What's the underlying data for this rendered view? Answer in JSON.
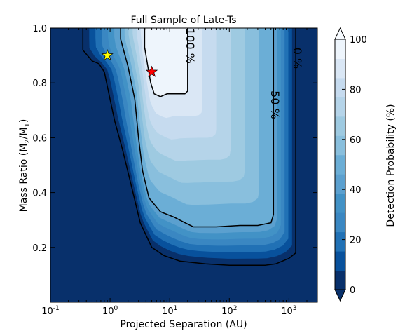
{
  "chart_data": {
    "type": "heatmap",
    "title": "Full Sample of Late-Ts",
    "xlabel": "Projected Separation (AU)",
    "ylabel_parts": {
      "main": "Mass Ratio (M",
      "sub2": "2",
      "mid": "/M",
      "sub1": "1",
      "end": ")"
    },
    "x_scale": "log",
    "xlim": [
      0.1,
      3000
    ],
    "ylim": [
      0.0,
      1.0
    ],
    "x_ticks": [
      {
        "value": 0.1,
        "base": "10",
        "exp": "-1"
      },
      {
        "value": 1,
        "base": "10",
        "exp": "0"
      },
      {
        "value": 10,
        "base": "10",
        "exp": "1"
      },
      {
        "value": 100,
        "base": "10",
        "exp": "2"
      },
      {
        "value": 1000,
        "base": "10",
        "exp": "3"
      }
    ],
    "y_ticks": [
      {
        "value": 0.2,
        "label": "0.2"
      },
      {
        "value": 0.4,
        "label": "0.4"
      },
      {
        "value": 0.6,
        "label": "0.6"
      },
      {
        "value": 0.8,
        "label": "0.8"
      },
      {
        "value": 1.0,
        "label": "1.0"
      }
    ],
    "colorbar": {
      "label": "Detection Probability (%)",
      "range": [
        0,
        100
      ],
      "ticks": [
        {
          "value": 0,
          "label": "0"
        },
        {
          "value": 20,
          "label": "20"
        },
        {
          "value": 40,
          "label": "40"
        },
        {
          "value": 60,
          "label": "60"
        },
        {
          "value": 80,
          "label": "80"
        },
        {
          "value": 100,
          "label": "100"
        }
      ],
      "levels": 13,
      "colors": [
        "#08306b",
        "#08519c",
        "#2171b5",
        "#3a87c2",
        "#4292c6",
        "#5ba0cf",
        "#6baed6",
        "#89bfdd",
        "#9ecae1",
        "#b5d4e9",
        "#c6dbef",
        "#dae7f5",
        "#eef5fc"
      ],
      "extend": "both"
    },
    "contours": [
      {
        "level": 0,
        "label": "0 %",
        "points": [
          [
            0.35,
            1.0
          ],
          [
            0.35,
            0.92
          ],
          [
            0.5,
            0.88
          ],
          [
            0.65,
            0.87
          ],
          [
            0.8,
            0.84
          ],
          [
            1.0,
            0.74
          ],
          [
            1.2,
            0.66
          ],
          [
            1.6,
            0.56
          ],
          [
            2.3,
            0.42
          ],
          [
            3.2,
            0.29
          ],
          [
            5,
            0.2
          ],
          [
            8,
            0.17
          ],
          [
            15,
            0.15
          ],
          [
            40,
            0.14
          ],
          [
            100,
            0.135
          ],
          [
            400,
            0.135
          ],
          [
            600,
            0.14
          ],
          [
            1000,
            0.16
          ],
          [
            1300,
            0.18
          ],
          [
            1300,
            1.0
          ]
        ]
      },
      {
        "level": 50,
        "label": "50 %",
        "points": [
          [
            1.5,
            1.0
          ],
          [
            1.5,
            0.96
          ],
          [
            2.0,
            0.86
          ],
          [
            2.6,
            0.74
          ],
          [
            3.0,
            0.6
          ],
          [
            3.5,
            0.48
          ],
          [
            4.5,
            0.38
          ],
          [
            7,
            0.33
          ],
          [
            12,
            0.31
          ],
          [
            18,
            0.29
          ],
          [
            25,
            0.275
          ],
          [
            60,
            0.275
          ],
          [
            150,
            0.28
          ],
          [
            300,
            0.28
          ],
          [
            500,
            0.29
          ],
          [
            550,
            0.32
          ],
          [
            550,
            1.0
          ]
        ]
      },
      {
        "level": 100,
        "label": "100 %",
        "points": [
          [
            3.8,
            1.0
          ],
          [
            3.8,
            0.93
          ],
          [
            4.3,
            0.86
          ],
          [
            4.8,
            0.8
          ],
          [
            5.5,
            0.76
          ],
          [
            7,
            0.75
          ],
          [
            9,
            0.76
          ],
          [
            13,
            0.76
          ],
          [
            18,
            0.76
          ],
          [
            20,
            0.77
          ],
          [
            20,
            1.0
          ]
        ]
      }
    ],
    "markers": [
      {
        "name": "yellow star",
        "x": 0.9,
        "y": 0.9,
        "color": "#ffff00"
      },
      {
        "name": "red star",
        "x": 5.0,
        "y": 0.84,
        "color": "#ff0000"
      }
    ]
  }
}
